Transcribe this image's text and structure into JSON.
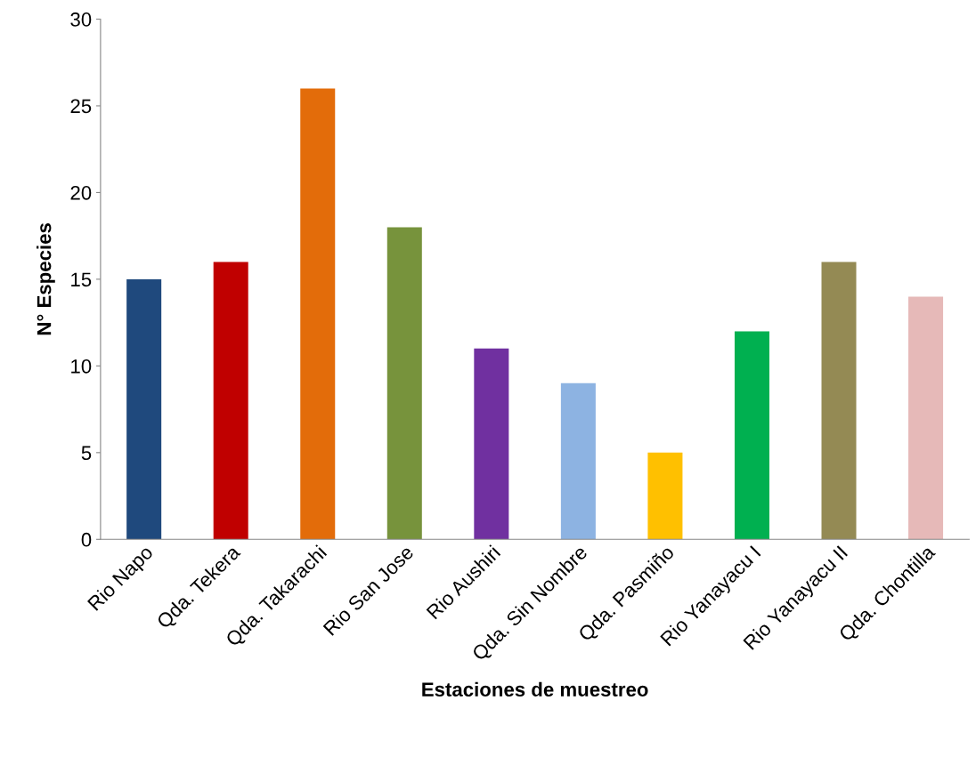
{
  "chart_data": {
    "type": "bar",
    "xlabel": "Estaciones de muestreo",
    "ylabel": "N° Especies",
    "categories": [
      "Rio Napo",
      "Qda. Tekera",
      "Qda. Takarachi",
      "Rio San Jose",
      "Rio Aushiri",
      "Qda. Sin Nombre",
      "Qda. Pasmiño",
      "Rio Yanayacu I",
      "Rio Yanayacu II",
      "Qda. Chontilla"
    ],
    "values": [
      15,
      16,
      26,
      18,
      11,
      9,
      5,
      12,
      16,
      14
    ],
    "colors": [
      "#1f497d",
      "#c00000",
      "#e36c0a",
      "#77933c",
      "#7030a0",
      "#8db3e2",
      "#ffc000",
      "#00b050",
      "#948a54",
      "#e6b9b8"
    ],
    "ylim": [
      0,
      30
    ],
    "yticks": [
      0,
      5,
      10,
      15,
      20,
      25,
      30
    ],
    "grid": false,
    "legend": false
  }
}
